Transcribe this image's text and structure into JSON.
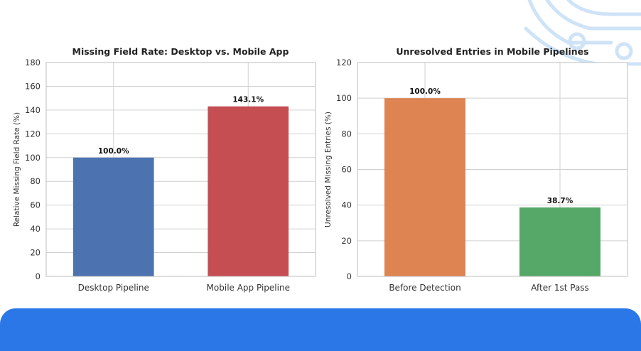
{
  "colors": {
    "banner": "#2b77e7",
    "decoration": "#cfe3f7"
  },
  "chart_data": [
    {
      "type": "bar",
      "title": "Missing Field Rate: Desktop vs. Mobile App",
      "xlabel": "",
      "ylabel": "Relative Missing Field Rate (%)",
      "categories": [
        "Desktop Pipeline",
        "Mobile App Pipeline"
      ],
      "values": [
        100.0,
        143.1
      ],
      "data_labels": [
        "100.0%",
        "143.1%"
      ],
      "colors": [
        "#4c72b0",
        "#c44e52"
      ],
      "ylim": [
        0,
        180
      ],
      "yticks": [
        0,
        20,
        40,
        60,
        80,
        100,
        120,
        140,
        160,
        180
      ],
      "grid": true
    },
    {
      "type": "bar",
      "title": "Unresolved Entries in Mobile Pipelines",
      "xlabel": "",
      "ylabel": "Unresolved Missing Entries (%)",
      "categories": [
        "Before Detection",
        "After 1st Pass"
      ],
      "values": [
        100.0,
        38.7
      ],
      "data_labels": [
        "100.0%",
        "38.7%"
      ],
      "colors": [
        "#dd8452",
        "#55a868"
      ],
      "ylim": [
        0,
        120
      ],
      "yticks": [
        0,
        20,
        40,
        60,
        80,
        100,
        120
      ],
      "grid": true
    }
  ]
}
